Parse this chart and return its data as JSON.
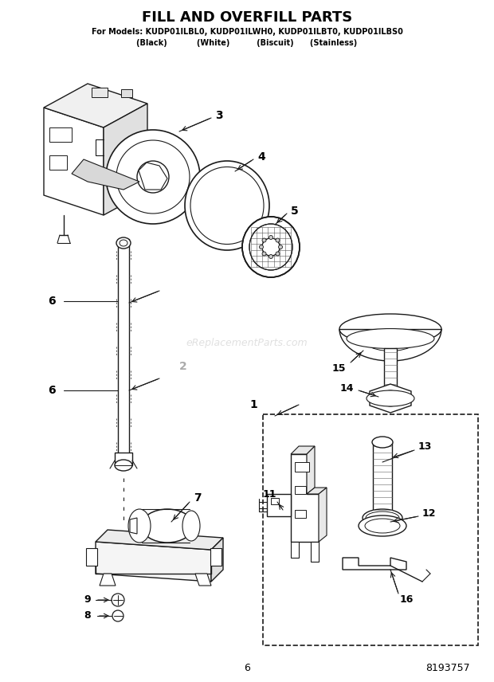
{
  "title": "FILL AND OVERFILL PARTS",
  "subtitle1": "For Models: KUDP01ILBL0, KUDP01ILWH0, KUDP01ILBT0, KUDP01ILBS0",
  "subtitle2": "(Black)           (White)          (Biscuit)      (Stainless)",
  "page_number": "6",
  "part_number": "8193757",
  "watermark": "eReplacementParts.com",
  "bg_color": "#ffffff",
  "lc": "#1a1a1a",
  "gray": "#888888"
}
